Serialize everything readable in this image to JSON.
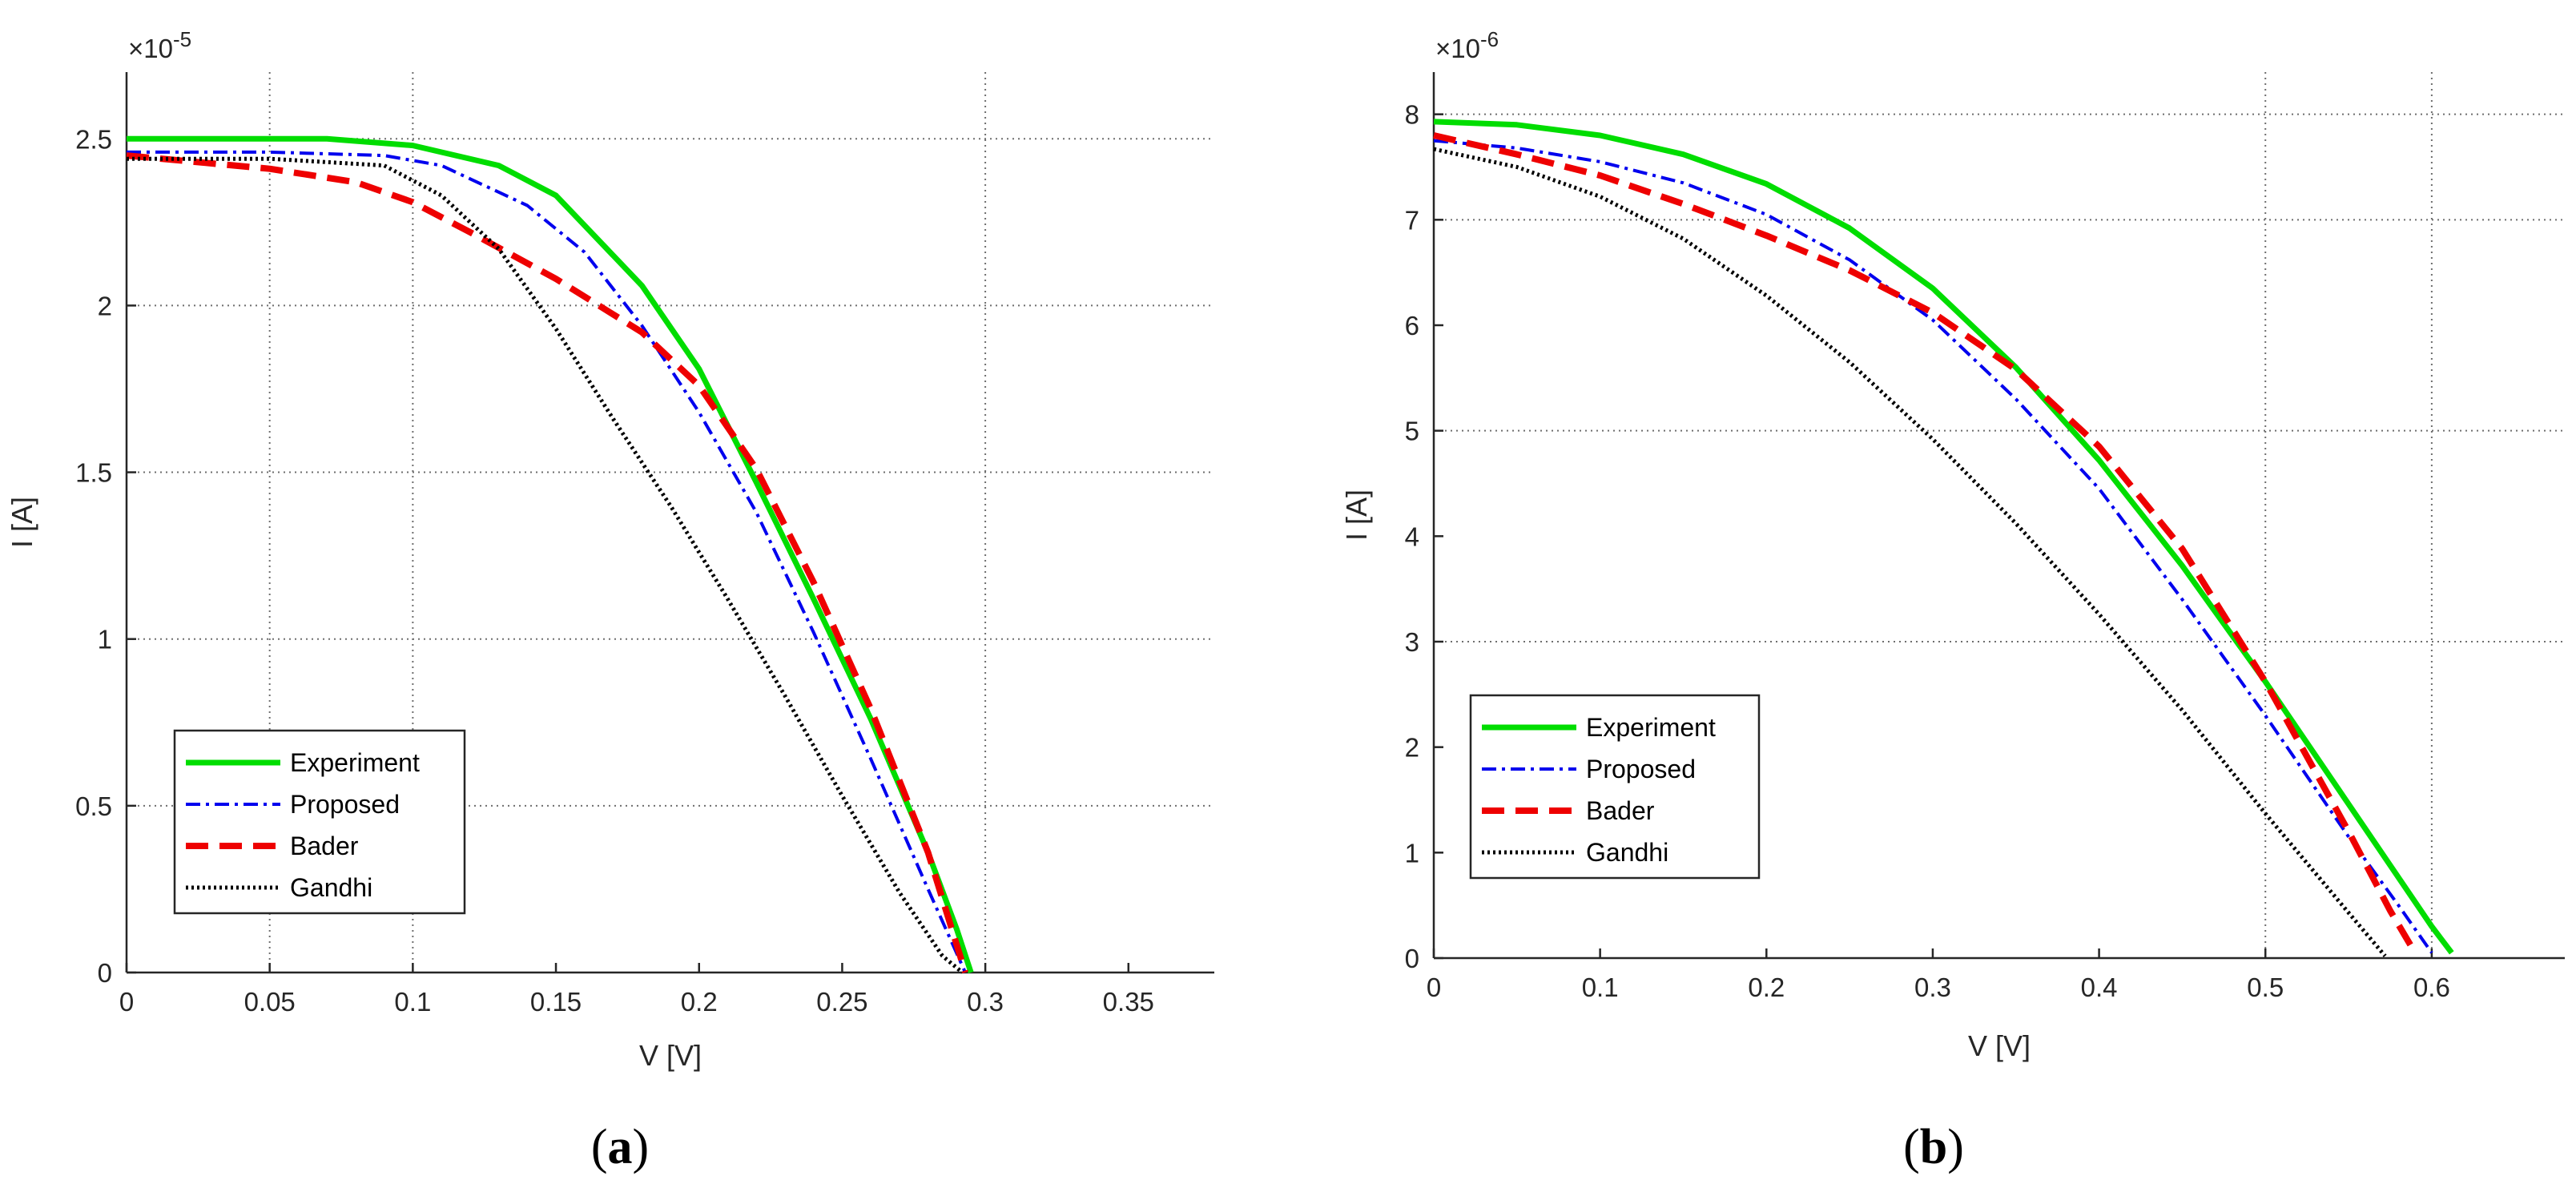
{
  "chart_data": [
    {
      "type": "line",
      "panel_label": "a",
      "xlabel": "V [V]",
      "ylabel": "I [A]",
      "y_exponent": "×10",
      "y_exponent_power": "-5",
      "xlim": [
        0,
        0.38
      ],
      "ylim": [
        0,
        2.7
      ],
      "x_ticks": [
        "0",
        "0.05",
        "0.1",
        "0.15",
        "0.2",
        "0.25",
        "0.3",
        "0.35"
      ],
      "y_ticks": [
        "0",
        "0.5",
        "1",
        "1.5",
        "2",
        "2.5"
      ],
      "x_grid": [
        0.05,
        0.1,
        0.3
      ],
      "y_grid": [
        0.5,
        1.0,
        1.5,
        2.0,
        2.5
      ],
      "legend_position": "bottom-left",
      "series": [
        {
          "name": "Experiment",
          "color": "#00dd00",
          "style": "solid",
          "x": [
            0,
            0.05,
            0.07,
            0.1,
            0.13,
            0.15,
            0.18,
            0.2,
            0.22,
            0.24,
            0.26,
            0.28,
            0.29,
            0.295
          ],
          "y": [
            2.5,
            2.5,
            2.5,
            2.48,
            2.42,
            2.33,
            2.06,
            1.81,
            1.47,
            1.12,
            0.76,
            0.36,
            0.13,
            0
          ]
        },
        {
          "name": "Proposed",
          "color": "#0000ee",
          "style": "dashdot",
          "x": [
            0,
            0.05,
            0.09,
            0.11,
            0.14,
            0.16,
            0.18,
            0.2,
            0.22,
            0.24,
            0.26,
            0.28,
            0.293
          ],
          "y": [
            2.46,
            2.46,
            2.45,
            2.42,
            2.3,
            2.16,
            1.94,
            1.68,
            1.38,
            1.02,
            0.64,
            0.25,
            0
          ]
        },
        {
          "name": "Bader",
          "color": "#ee0000",
          "style": "dashed",
          "x": [
            0,
            0.05,
            0.08,
            0.1,
            0.12,
            0.15,
            0.18,
            0.2,
            0.22,
            0.24,
            0.26,
            0.28,
            0.293
          ],
          "y": [
            2.45,
            2.41,
            2.37,
            2.31,
            2.22,
            2.08,
            1.92,
            1.76,
            1.51,
            1.17,
            0.79,
            0.36,
            0
          ]
        },
        {
          "name": "Gandhi",
          "color": "#000000",
          "style": "dotted",
          "x": [
            0,
            0.05,
            0.09,
            0.11,
            0.13,
            0.15,
            0.17,
            0.19,
            0.21,
            0.23,
            0.25,
            0.27,
            0.285,
            0.292
          ],
          "y": [
            2.44,
            2.44,
            2.42,
            2.33,
            2.17,
            1.93,
            1.66,
            1.4,
            1.12,
            0.83,
            0.53,
            0.24,
            0.05,
            0
          ]
        }
      ]
    },
    {
      "type": "line",
      "panel_label": "b",
      "xlabel": "V [V]",
      "ylabel": "I [A]",
      "y_exponent": "×10",
      "y_exponent_power": "-6",
      "xlim": [
        0,
        0.68
      ],
      "ylim": [
        0,
        8.4
      ],
      "x_ticks": [
        "0",
        "0.1",
        "0.2",
        "0.3",
        "0.4",
        "0.5",
        "0.6"
      ],
      "y_ticks": [
        "0",
        "1",
        "2",
        "3",
        "4",
        "5",
        "6",
        "7",
        "8"
      ],
      "x_grid": [
        0.5,
        0.6
      ],
      "y_grid": [
        3,
        5,
        7,
        8
      ],
      "legend_position": "bottom-left",
      "series": [
        {
          "name": "Experiment",
          "color": "#00dd00",
          "style": "solid",
          "x": [
            0,
            0.05,
            0.1,
            0.15,
            0.2,
            0.25,
            0.3,
            0.35,
            0.4,
            0.45,
            0.5,
            0.55,
            0.6,
            0.612
          ],
          "y": [
            7.93,
            7.9,
            7.8,
            7.62,
            7.34,
            6.92,
            6.35,
            5.6,
            4.72,
            3.72,
            2.62,
            1.46,
            0.3,
            0.05
          ]
        },
        {
          "name": "Proposed",
          "color": "#0000ee",
          "style": "dashdot",
          "x": [
            0,
            0.05,
            0.1,
            0.15,
            0.2,
            0.25,
            0.3,
            0.35,
            0.4,
            0.45,
            0.5,
            0.55,
            0.58,
            0.6
          ],
          "y": [
            7.75,
            7.68,
            7.55,
            7.35,
            7.05,
            6.62,
            6.05,
            5.3,
            4.45,
            3.4,
            2.3,
            1.15,
            0.5,
            0.05
          ]
        },
        {
          "name": "Bader",
          "color": "#ee0000",
          "style": "dashed",
          "x": [
            0,
            0.05,
            0.1,
            0.15,
            0.2,
            0.25,
            0.3,
            0.35,
            0.4,
            0.45,
            0.5,
            0.55,
            0.575,
            0.59
          ],
          "y": [
            7.8,
            7.62,
            7.42,
            7.15,
            6.85,
            6.52,
            6.12,
            5.58,
            4.85,
            3.88,
            2.62,
            1.2,
            0.45,
            0.05
          ]
        },
        {
          "name": "Gandhi",
          "color": "#000000",
          "style": "dotted",
          "x": [
            0,
            0.05,
            0.1,
            0.15,
            0.2,
            0.25,
            0.3,
            0.35,
            0.4,
            0.45,
            0.5,
            0.55,
            0.572
          ],
          "y": [
            7.67,
            7.5,
            7.22,
            6.82,
            6.28,
            5.65,
            4.92,
            4.12,
            3.26,
            2.35,
            1.37,
            0.43,
            0.02
          ]
        }
      ]
    }
  ]
}
